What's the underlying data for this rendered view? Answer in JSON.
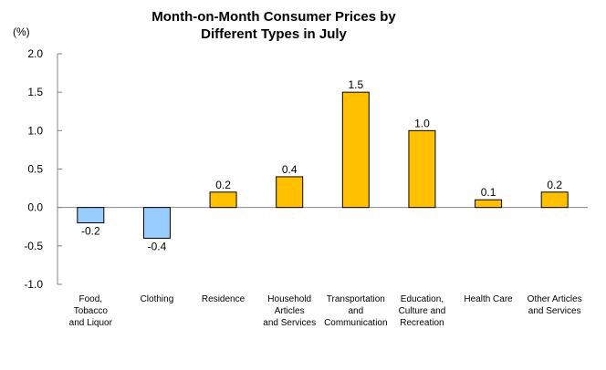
{
  "chart_data": {
    "type": "bar",
    "title_lines": [
      "Month-on-Month Consumer Prices by",
      "Different Types in July"
    ],
    "ylabel": "(%)",
    "xlabel": "",
    "ylim": [
      -1.0,
      2.0
    ],
    "yticks": [
      2.0,
      1.5,
      1.0,
      0.5,
      0.0,
      -0.5,
      -1.0
    ],
    "ytick_labels": [
      "2.0",
      "1.5",
      "1.0",
      "0.5",
      "0.0",
      "-0.5",
      "-1.0"
    ],
    "grid": false,
    "legend": "none",
    "categories": [
      [
        "Food,",
        "Tobacco",
        "and Liquor"
      ],
      [
        "Clothing"
      ],
      [
        "Residence"
      ],
      [
        "Household",
        "Articles",
        "and Services"
      ],
      [
        "Transportation",
        "and",
        "Communication"
      ],
      [
        "Education,",
        "Culture and",
        "Recreation"
      ],
      [
        "Health Care"
      ],
      [
        "Other Articles",
        "and Services"
      ]
    ],
    "values": [
      -0.2,
      -0.4,
      0.2,
      0.4,
      1.5,
      1.0,
      0.1,
      0.2
    ],
    "value_labels": [
      "-0.2",
      "-0.4",
      "0.2",
      "0.4",
      "1.5",
      "1.0",
      "0.1",
      "0.2"
    ],
    "colors": {
      "positive": "#FFC000",
      "negative": "#99CCFF",
      "axis": "#868686",
      "bar_border": "#000000"
    }
  }
}
